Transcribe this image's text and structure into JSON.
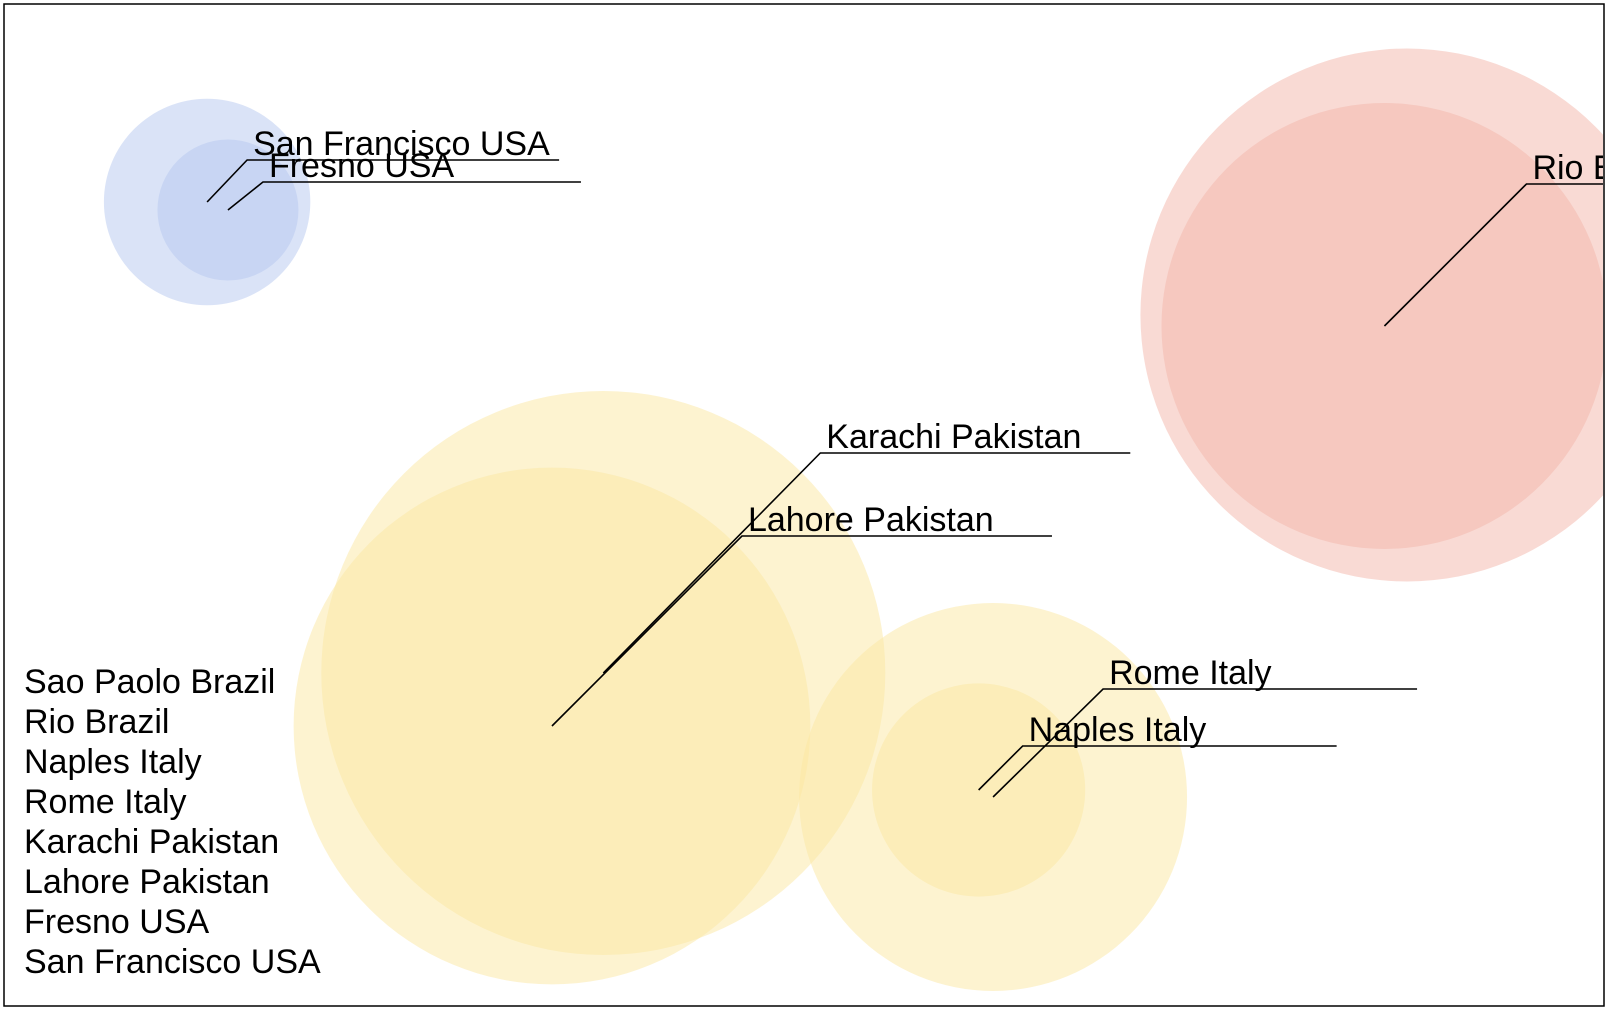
{
  "chart_data": {
    "type": "scatter",
    "title": "",
    "xlabel": "",
    "ylabel": "",
    "grid": false,
    "xlim": [
      0,
      100
    ],
    "ylim": [
      0,
      100
    ],
    "colors": {
      "usa": "#b6c8f0",
      "pakistan": "#fbe7a1",
      "italy": "#fbe7a1",
      "brazil": "#f3b6aa",
      "leader": "#000000",
      "frame": "#000000"
    },
    "points": [
      {
        "label": "Sao Paolo Brazil",
        "x": 87.4,
        "y": 69.0,
        "size": 100,
        "color": "#f3b6aa"
      },
      {
        "label": "Rio Brazil",
        "x": 86.0,
        "y": 67.9,
        "size": 70,
        "color": "#f3b6aa"
      },
      {
        "label": "Naples Italy",
        "x": 60.7,
        "y": 21.5,
        "size": 16,
        "color": "#fbe7a1"
      },
      {
        "label": "Rome Italy",
        "x": 61.6,
        "y": 20.8,
        "size": 53,
        "color": "#fbe7a1"
      },
      {
        "label": "Karachi Pakistan",
        "x": 37.3,
        "y": 33.2,
        "size": 112,
        "color": "#fbe7a1"
      },
      {
        "label": "Lahore Pakistan",
        "x": 34.1,
        "y": 27.9,
        "size": 94,
        "color": "#fbe7a1"
      },
      {
        "label": "Fresno USA",
        "x": 13.9,
        "y": 79.5,
        "size": 7,
        "color": "#b6c8f0"
      },
      {
        "label": "San Francisco USA",
        "x": 12.6,
        "y": 80.3,
        "size": 15,
        "color": "#b6c8f0"
      }
    ],
    "callouts": [
      {
        "label": "San Francisco USA"
      },
      {
        "label": "Fresno USA"
      },
      {
        "label": "Rio Brazil"
      },
      {
        "label": "Karachi Pakistan"
      },
      {
        "label": "Lahore Pakistan"
      },
      {
        "label": "Rome Italy"
      },
      {
        "label": "Naples Italy"
      }
    ],
    "legend_position": "bottom-left",
    "legend": [
      "Sao Paolo Brazil",
      "Rio Brazil",
      "Naples Italy",
      "Rome Italy",
      "Karachi Pakistan",
      "Lahore Pakistan",
      "Fresno USA",
      "San Francisco USA"
    ]
  }
}
